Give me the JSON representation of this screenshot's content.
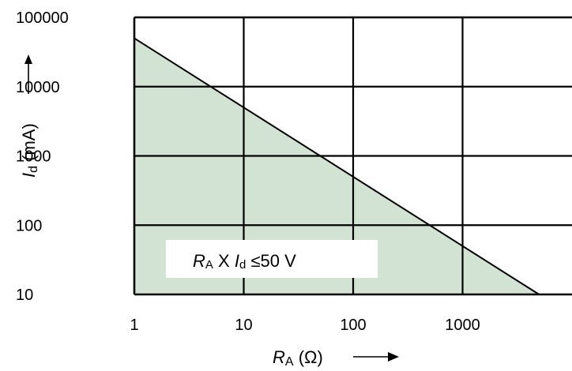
{
  "chart_data": {
    "type": "area",
    "x_scale": "log",
    "y_scale": "log",
    "xlim": [
      1,
      10000
    ],
    "ylim": [
      10,
      100000
    ],
    "grid": true,
    "x_ticks": [
      "1",
      "10",
      "100",
      "1000"
    ],
    "y_ticks": [
      "100000",
      "10000",
      "1000",
      "100",
      "10"
    ],
    "x_values": [
      1,
      5000
    ],
    "y_values": [
      50000,
      10
    ],
    "xlabel": {
      "main": "R",
      "sub": "A",
      "unit": "(Ω)"
    },
    "ylabel": {
      "main": "I",
      "sub": "d",
      "unit": "(mA)"
    },
    "annotation": {
      "r": "R",
      "r_sub": "A",
      "x": "X",
      "i": "I",
      "i_sub": "d",
      "rest": "≤50 V"
    },
    "fill_color": "#d3e3d3",
    "line_color": "#000000"
  }
}
